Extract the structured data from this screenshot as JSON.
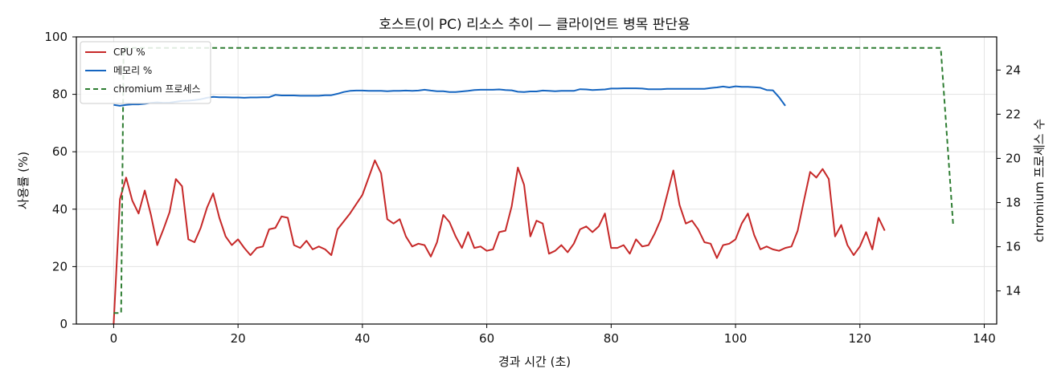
{
  "chart_data": {
    "type": "line",
    "title": "호스트(이 PC) 리소스 추이 — 클라이언트 병목 판단용",
    "xlabel": "경과 시간 (초)",
    "ylabel": "사용률 (%)",
    "y2label": "chromium 프로세스 수",
    "xlim": [
      -6,
      142
    ],
    "ylim": [
      0,
      100
    ],
    "y2lim": [
      12.5,
      25.5
    ],
    "xticks": [
      0,
      20,
      40,
      60,
      80,
      100,
      120,
      140
    ],
    "yticks": [
      0,
      20,
      40,
      60,
      80,
      100
    ],
    "y2ticks": [
      14,
      16,
      18,
      20,
      22,
      24
    ],
    "grid": true,
    "legend": "top-left",
    "series": [
      {
        "name": "CPU %",
        "axis": "left",
        "color": "#c62828",
        "style": "solid",
        "points": [
          [
            0,
            0
          ],
          [
            1,
            43.5
          ],
          [
            2,
            51
          ],
          [
            3,
            43
          ],
          [
            4,
            38.5
          ],
          [
            5,
            46.5
          ],
          [
            6,
            38
          ],
          [
            7,
            27.5
          ],
          [
            8,
            33
          ],
          [
            9,
            39
          ],
          [
            10,
            50.5
          ],
          [
            11,
            48
          ],
          [
            12,
            29.5
          ],
          [
            13,
            28.5
          ],
          [
            14,
            33.5
          ],
          [
            15,
            40.5
          ],
          [
            16,
            45.5
          ],
          [
            17,
            37
          ],
          [
            18,
            30.5
          ],
          [
            19,
            27.5
          ],
          [
            20,
            29.5
          ],
          [
            21,
            26.5
          ],
          [
            22,
            24
          ],
          [
            23,
            26.5
          ],
          [
            24,
            27
          ],
          [
            25,
            33
          ],
          [
            26,
            33.5
          ],
          [
            27,
            37.5
          ],
          [
            28,
            37
          ],
          [
            29,
            27.5
          ],
          [
            30,
            26.5
          ],
          [
            31,
            29
          ],
          [
            32,
            26
          ],
          [
            33,
            27
          ],
          [
            34,
            26
          ],
          [
            35,
            24
          ],
          [
            36,
            33
          ],
          [
            38,
            38.5
          ],
          [
            40,
            45
          ],
          [
            42,
            57
          ],
          [
            43,
            52.5
          ],
          [
            44,
            36.5
          ],
          [
            45,
            35
          ],
          [
            46,
            36.5
          ],
          [
            47,
            30.5
          ],
          [
            48,
            27
          ],
          [
            49,
            28
          ],
          [
            50,
            27.5
          ],
          [
            51,
            23.5
          ],
          [
            52,
            28.5
          ],
          [
            53,
            38
          ],
          [
            54,
            35.5
          ],
          [
            55,
            30.5
          ],
          [
            56,
            26.5
          ],
          [
            57,
            32
          ],
          [
            58,
            26.5
          ],
          [
            59,
            27
          ],
          [
            60,
            25.5
          ],
          [
            61,
            26
          ],
          [
            62,
            32
          ],
          [
            63,
            32.5
          ],
          [
            64,
            41
          ],
          [
            65,
            54.5
          ],
          [
            66,
            48.5
          ],
          [
            67,
            30.5
          ],
          [
            68,
            36
          ],
          [
            69,
            35
          ],
          [
            70,
            24.5
          ],
          [
            71,
            25.5
          ],
          [
            72,
            27.5
          ],
          [
            73,
            25
          ],
          [
            74,
            28
          ],
          [
            75,
            33
          ],
          [
            76,
            34
          ],
          [
            77,
            32
          ],
          [
            78,
            34
          ],
          [
            79,
            38.5
          ],
          [
            80,
            26.5
          ],
          [
            81,
            26.5
          ],
          [
            82,
            27.5
          ],
          [
            83,
            24.5
          ],
          [
            84,
            29.5
          ],
          [
            85,
            27
          ],
          [
            86,
            27.5
          ],
          [
            87,
            31.5
          ],
          [
            88,
            36.5
          ],
          [
            89,
            45
          ],
          [
            90,
            53.5
          ],
          [
            91,
            41.5
          ],
          [
            92,
            35
          ],
          [
            93,
            36
          ],
          [
            94,
            33
          ],
          [
            95,
            28.5
          ],
          [
            96,
            28
          ],
          [
            97,
            23
          ],
          [
            98,
            27.5
          ],
          [
            99,
            28
          ],
          [
            100,
            29.5
          ],
          [
            101,
            35
          ],
          [
            102,
            38.5
          ],
          [
            103,
            31
          ],
          [
            104,
            26
          ],
          [
            105,
            27
          ],
          [
            106,
            26
          ],
          [
            107,
            25.5
          ],
          [
            108,
            26.5
          ],
          [
            109,
            27
          ],
          [
            110,
            32.5
          ],
          [
            111,
            43
          ],
          [
            112,
            53
          ],
          [
            113,
            51
          ],
          [
            114,
            54
          ],
          [
            115,
            50.5
          ],
          [
            116,
            30.5
          ],
          [
            117,
            34.5
          ],
          [
            118,
            27.5
          ],
          [
            119,
            24
          ],
          [
            120,
            27
          ],
          [
            121,
            32
          ],
          [
            122,
            26
          ],
          [
            123,
            37
          ],
          [
            124,
            32.5
          ]
        ]
      },
      {
        "name": "메모리 %",
        "axis": "left",
        "color": "#1565c0",
        "style": "solid",
        "points": [
          [
            0,
            76.3
          ],
          [
            1,
            76
          ],
          [
            2,
            76.3
          ],
          [
            3,
            76.5
          ],
          [
            4,
            76.5
          ],
          [
            5,
            76.7
          ],
          [
            6,
            77
          ],
          [
            7,
            77.2
          ],
          [
            8,
            77
          ],
          [
            9,
            77.1
          ],
          [
            10,
            77.4
          ],
          [
            11,
            77.7
          ],
          [
            12,
            77.8
          ],
          [
            13,
            78
          ],
          [
            14,
            78.3
          ],
          [
            15,
            78.8
          ],
          [
            16,
            79.1
          ],
          [
            17,
            79
          ],
          [
            18,
            79
          ],
          [
            19,
            78.9
          ],
          [
            20,
            78.9
          ],
          [
            21,
            78.8
          ],
          [
            22,
            78.9
          ],
          [
            23,
            78.9
          ],
          [
            24,
            79
          ],
          [
            25,
            79
          ],
          [
            26,
            79.8
          ],
          [
            27,
            79.6
          ],
          [
            28,
            79.6
          ],
          [
            29,
            79.6
          ],
          [
            30,
            79.5
          ],
          [
            31,
            79.5
          ],
          [
            32,
            79.5
          ],
          [
            33,
            79.5
          ],
          [
            34,
            79.7
          ],
          [
            35,
            79.7
          ],
          [
            36,
            80.2
          ],
          [
            37,
            80.8
          ],
          [
            38,
            81.2
          ],
          [
            39,
            81.3
          ],
          [
            40,
            81.3
          ],
          [
            41,
            81.2
          ],
          [
            42,
            81.2
          ],
          [
            43,
            81.2
          ],
          [
            44,
            81.1
          ],
          [
            45,
            81.2
          ],
          [
            46,
            81.2
          ],
          [
            47,
            81.3
          ],
          [
            48,
            81.2
          ],
          [
            49,
            81.3
          ],
          [
            50,
            81.6
          ],
          [
            51,
            81.3
          ],
          [
            52,
            81.1
          ],
          [
            53,
            81.1
          ],
          [
            54,
            80.8
          ],
          [
            55,
            80.8
          ],
          [
            56,
            81
          ],
          [
            57,
            81.2
          ],
          [
            58,
            81.5
          ],
          [
            59,
            81.6
          ],
          [
            60,
            81.6
          ],
          [
            61,
            81.6
          ],
          [
            62,
            81.7
          ],
          [
            63,
            81.5
          ],
          [
            64,
            81.4
          ],
          [
            65,
            80.9
          ],
          [
            66,
            80.8
          ],
          [
            67,
            81
          ],
          [
            68,
            81
          ],
          [
            69,
            81.3
          ],
          [
            70,
            81.2
          ],
          [
            71,
            81.1
          ],
          [
            72,
            81.2
          ],
          [
            73,
            81.2
          ],
          [
            74,
            81.2
          ],
          [
            75,
            81.8
          ],
          [
            76,
            81.7
          ],
          [
            77,
            81.5
          ],
          [
            78,
            81.6
          ],
          [
            79,
            81.7
          ],
          [
            80,
            82
          ],
          [
            81,
            82
          ],
          [
            82,
            82.1
          ],
          [
            83,
            82.1
          ],
          [
            84,
            82.1
          ],
          [
            85,
            82
          ],
          [
            86,
            81.8
          ],
          [
            87,
            81.8
          ],
          [
            88,
            81.8
          ],
          [
            89,
            81.9
          ],
          [
            90,
            81.9
          ],
          [
            91,
            81.9
          ],
          [
            92,
            81.9
          ],
          [
            93,
            81.9
          ],
          [
            94,
            81.9
          ],
          [
            95,
            81.9
          ],
          [
            96,
            82.2
          ],
          [
            97,
            82.4
          ],
          [
            98,
            82.7
          ],
          [
            99,
            82.4
          ],
          [
            100,
            82.8
          ],
          [
            101,
            82.6
          ],
          [
            102,
            82.6
          ],
          [
            103,
            82.5
          ],
          [
            104,
            82.3
          ],
          [
            105,
            81.5
          ],
          [
            106,
            81.4
          ],
          [
            107,
            79
          ],
          [
            108,
            76
          ]
        ]
      },
      {
        "name": "chromium 프로세스",
        "axis": "right",
        "color": "#2e7d32",
        "style": "dashed",
        "points": [
          [
            0,
            13
          ],
          [
            1.2,
            13
          ],
          [
            1.6,
            25
          ],
          [
            133,
            25
          ],
          [
            135,
            17
          ]
        ]
      }
    ]
  }
}
